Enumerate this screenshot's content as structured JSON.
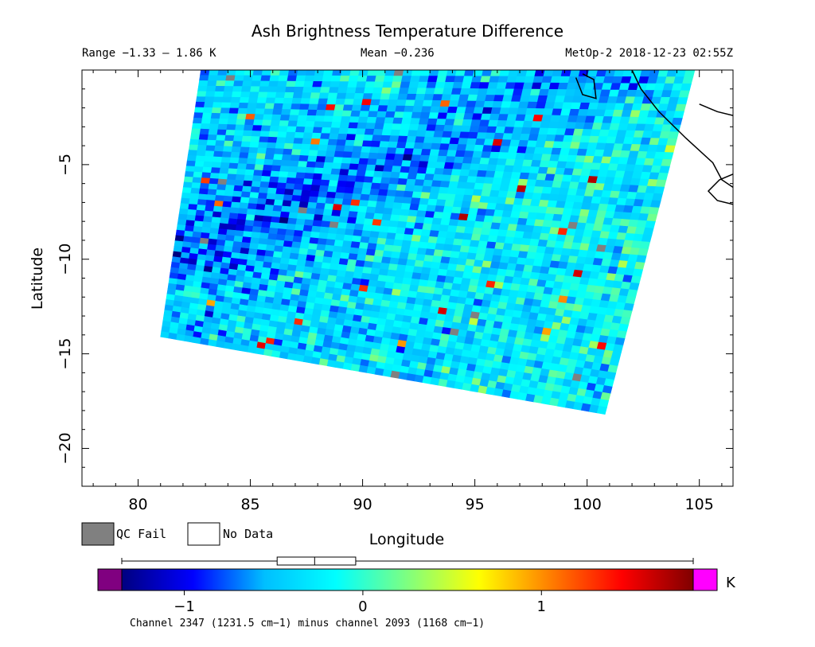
{
  "header": {
    "title": "Ash Brightness Temperature Difference",
    "range_text": "Range −1.33 – 1.86 K",
    "mean_text": "Mean −0.236",
    "satellite_text": "MetOp-2 2018-12-23 02:55Z"
  },
  "legend": {
    "qc_fail_label": "QC Fail",
    "no_data_label": "No Data",
    "qc_fail_color": "#808080",
    "no_data_color": "#ffffff"
  },
  "colorbar": {
    "unit": "K",
    "caption": "Channel 2347 (1231.5 cm−1) minus channel 2093 (1168 cm−1)",
    "ticks": [
      {
        "value": -1,
        "label": "−1"
      },
      {
        "value": 0,
        "label": "0"
      },
      {
        "value": 1,
        "label": "1"
      }
    ],
    "under_color": "#800080",
    "over_color": "#ff00ff",
    "stops": [
      "#000080",
      "#0000ff",
      "#00bfff",
      "#00ffff",
      "#7fff7f",
      "#ffff00",
      "#ff7f00",
      "#ff0000",
      "#800000"
    ]
  },
  "chart_data": {
    "type": "heatmap",
    "xlabel": "Longitude",
    "ylabel": "Latitude",
    "xlim": [
      77.5,
      106.5
    ],
    "ylim": [
      -22,
      0
    ],
    "x_ticks": [
      80,
      85,
      90,
      95,
      100,
      105
    ],
    "y_ticks": [
      -5,
      -10,
      -15,
      -20
    ],
    "value_range": [
      -1.33,
      1.86
    ],
    "mean": -0.236,
    "colorbar_range": [
      -1.35,
      1.85
    ],
    "colorbar_box": {
      "min": -1.35,
      "q1": -0.48,
      "median": -0.27,
      "q3": -0.04,
      "max": 1.85
    },
    "swath_corners": [
      [
        82.8,
        0
      ],
      [
        104.8,
        0
      ],
      [
        100.8,
        -18.2
      ],
      [
        81.0,
        -14.1
      ]
    ],
    "coastline": [
      [
        [
          102.0,
          0
        ],
        [
          102.4,
          -1.0
        ],
        [
          103.2,
          -2.2
        ],
        [
          104.4,
          -3.6
        ],
        [
          105.6,
          -4.9
        ],
        [
          106.0,
          -5.8
        ],
        [
          106.5,
          -6.2
        ]
      ],
      [
        [
          105.0,
          -1.8
        ],
        [
          105.8,
          -2.2
        ],
        [
          106.5,
          -2.4
        ]
      ],
      [
        [
          106.5,
          -5.5
        ],
        [
          105.9,
          -5.8
        ],
        [
          105.4,
          -6.4
        ],
        [
          105.8,
          -6.9
        ],
        [
          106.5,
          -7.1
        ]
      ],
      [
        [
          99.5,
          -0.4
        ],
        [
          99.8,
          -1.3
        ],
        [
          100.4,
          -1.5
        ],
        [
          100.3,
          -0.5
        ],
        [
          99.8,
          -0.2
        ]
      ]
    ],
    "fields": {
      "mean_value": -0.236,
      "diagonal_feature": "Strip of cooler (darker blue) values running from about 85E, -8 toward 97E, -2"
    }
  }
}
